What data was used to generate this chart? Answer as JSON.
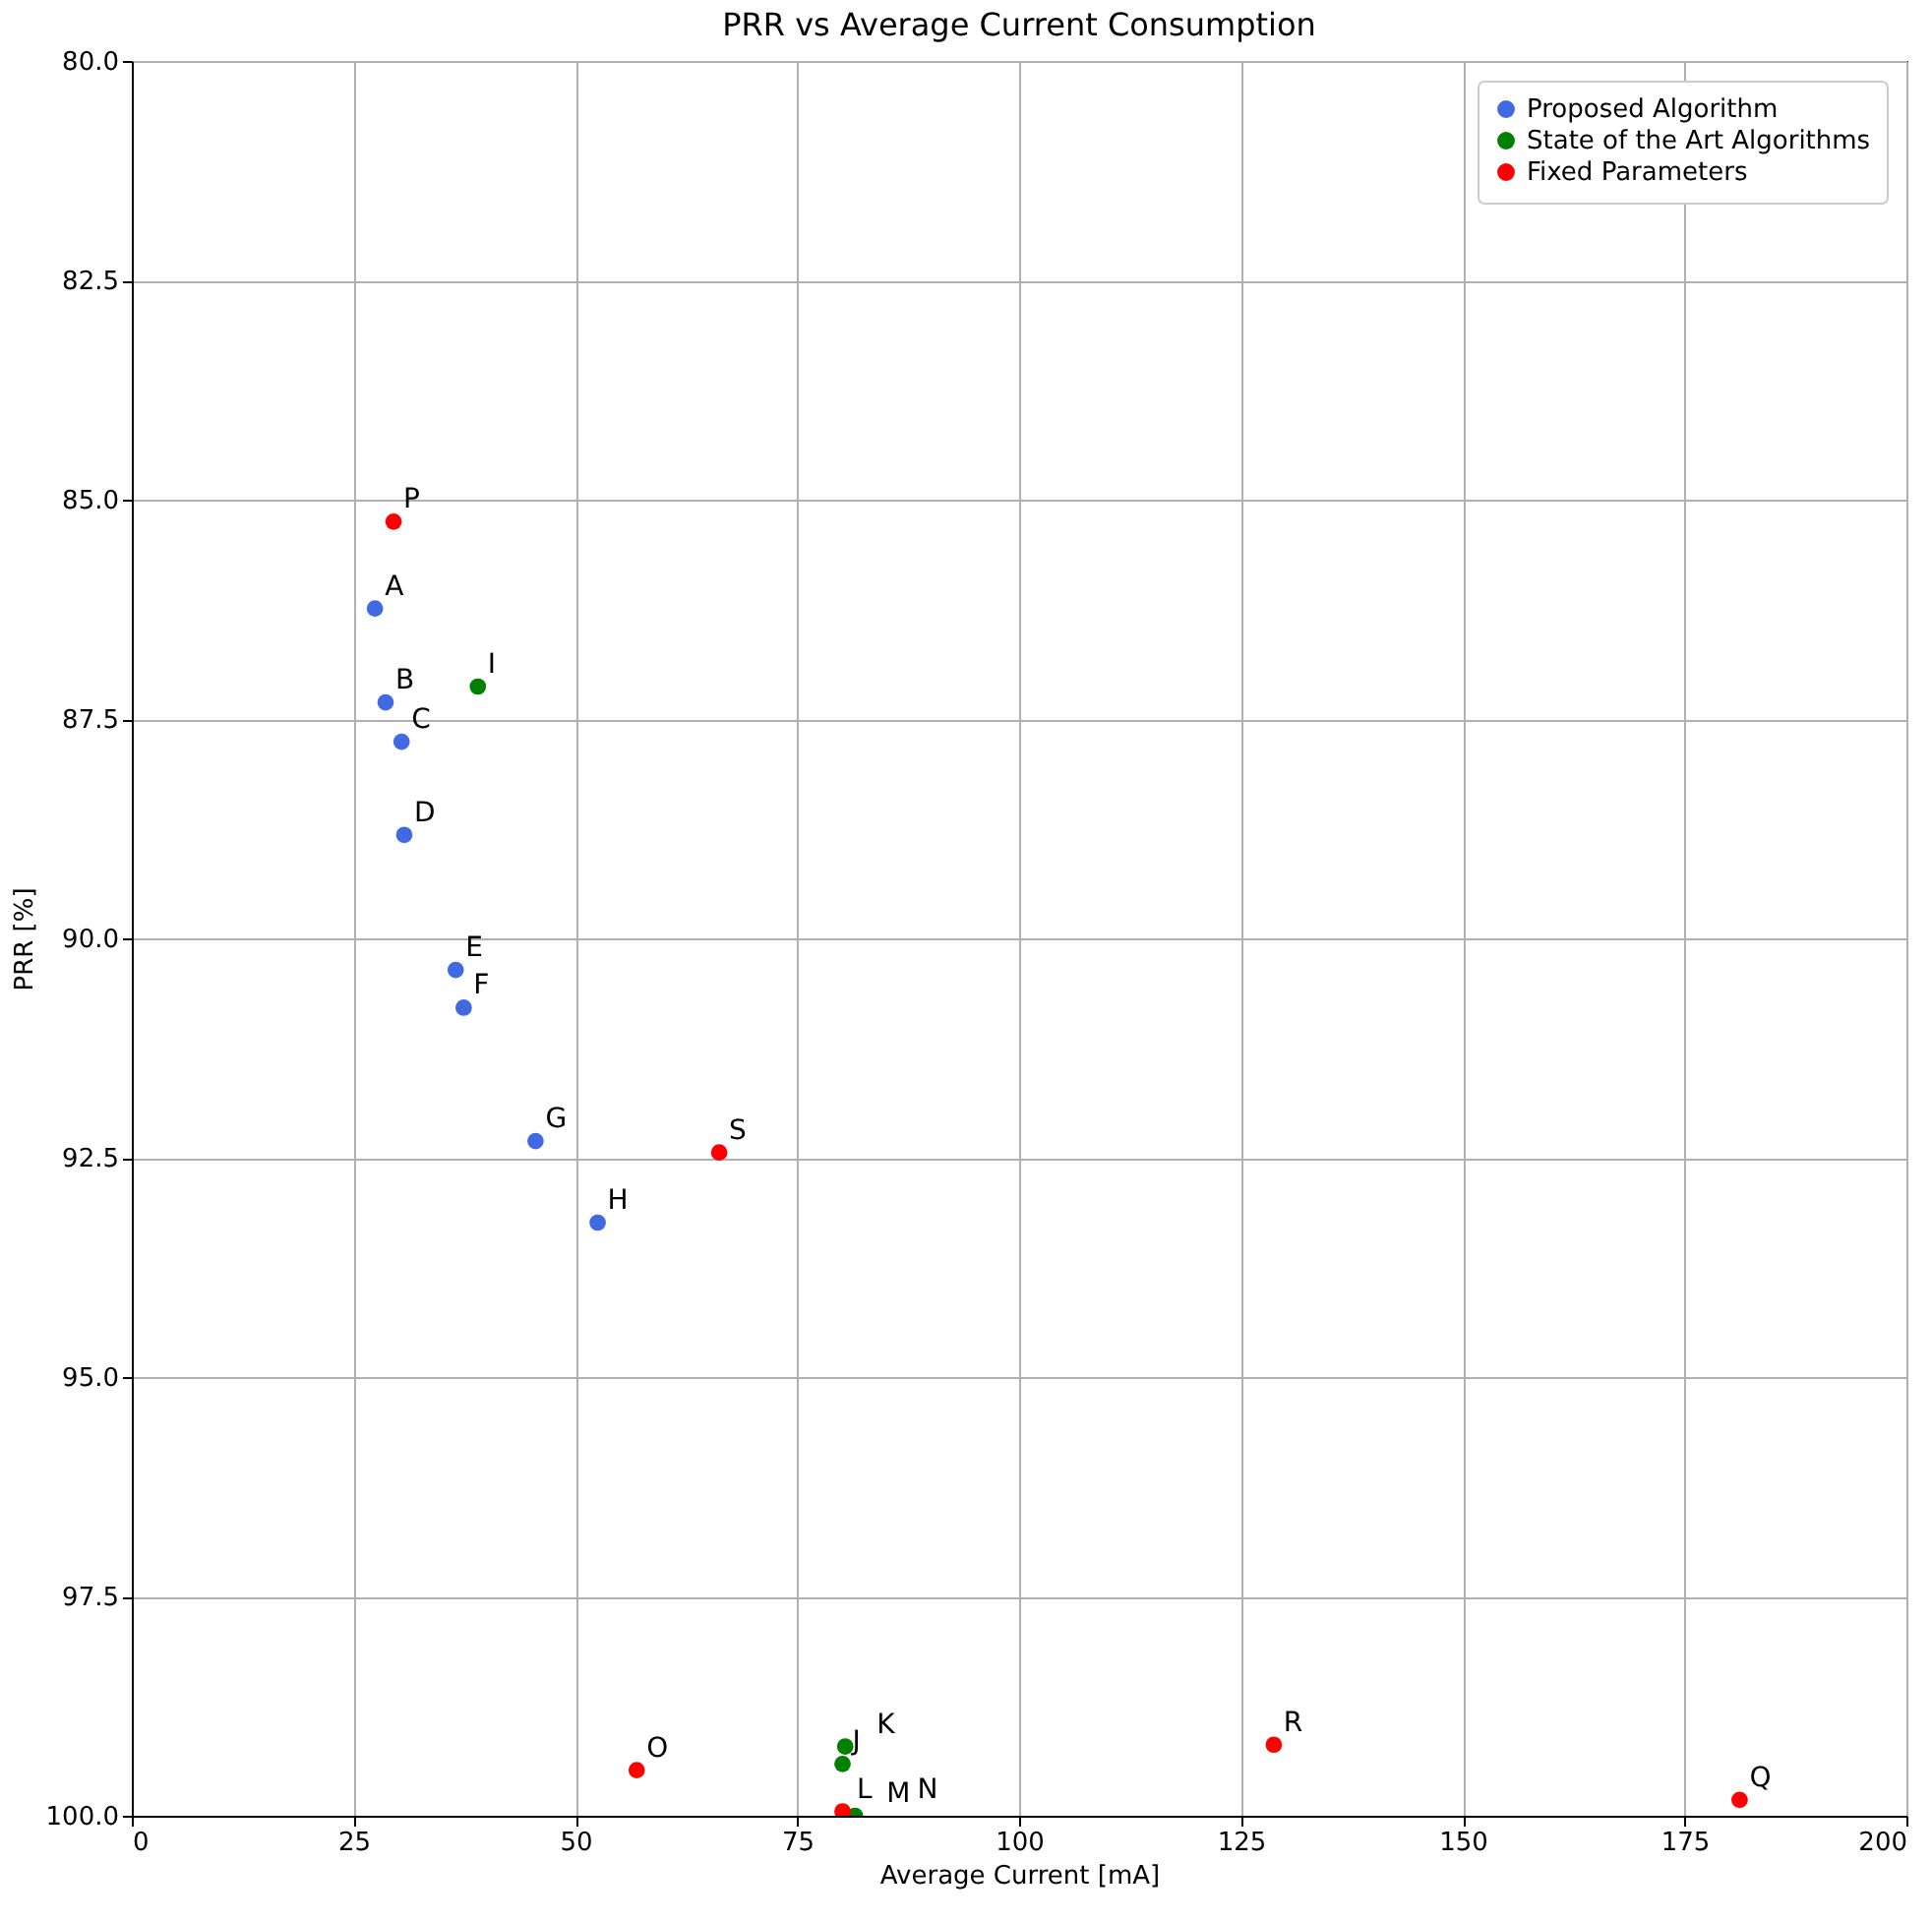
{
  "chart_data": {
    "type": "scatter",
    "title": "PRR vs Average Current Consumption",
    "xlabel": "Average Current [mA]",
    "ylabel": "PRR [%]",
    "series": [
      {
        "name": "Proposed Algorithm",
        "color": "#4169e1",
        "x": [
          27.4,
          28.6,
          30.4,
          30.7,
          36.5,
          37.4,
          45.5,
          52.5
        ],
        "values": [
          86.24,
          87.31,
          87.76,
          88.82,
          90.36,
          90.79,
          92.31,
          93.24
        ]
      },
      {
        "name": "State of the Art Algorithms",
        "color": "#008000",
        "x": [
          39.0,
          80.1,
          80.4,
          80.6,
          81.5
        ],
        "values": [
          87.13,
          99.41,
          99.21,
          null,
          100.0
        ]
      },
      {
        "name": "Fixed Parameters",
        "color": "#ff0000",
        "x": [
          80.1,
          56.9,
          29.5,
          181.2,
          128.7,
          66.2
        ],
        "values": [
          99.95,
          99.48,
          85.25,
          99.82,
          99.19,
          92.44
        ]
      }
    ],
    "annotations": [
      {
        "text": "A",
        "x": 27.4,
        "y": 86.24
      },
      {
        "text": "B",
        "x": 28.6,
        "y": 87.31
      },
      {
        "text": "C",
        "x": 30.4,
        "y": 87.76
      },
      {
        "text": "D",
        "x": 30.7,
        "y": 88.82
      },
      {
        "text": "E",
        "x": 36.5,
        "y": 90.36
      },
      {
        "text": "F",
        "x": 37.4,
        "y": 90.79
      },
      {
        "text": "G",
        "x": 45.5,
        "y": 92.31
      },
      {
        "text": "H",
        "x": 52.5,
        "y": 93.24
      },
      {
        "text": "I",
        "x": 39.0,
        "y": 87.13
      },
      {
        "text": "J",
        "x": 80.1,
        "y": 99.41
      },
      {
        "text": "K",
        "x": 80.4,
        "y": 99.21
      },
      {
        "text": "L",
        "x": 80.6,
        "y": 99.95
      },
      {
        "text": "M",
        "x": 81.5,
        "y": 100.0
      },
      {
        "text": "N",
        "x": 80.1,
        "y": 99.95
      },
      {
        "text": "O",
        "x": 56.9,
        "y": 99.48
      },
      {
        "text": "P",
        "x": 29.5,
        "y": 85.25
      },
      {
        "text": "Q",
        "x": 181.2,
        "y": 99.82
      },
      {
        "text": "R",
        "x": 128.7,
        "y": 99.19
      },
      {
        "text": "S",
        "x": 66.2,
        "y": 92.44
      }
    ],
    "xlim": [
      0,
      200
    ],
    "xticks": [
      0,
      25,
      50,
      75,
      100,
      125,
      150,
      175,
      200
    ],
    "ylim": [
      100,
      80
    ],
    "yticks": [
      {
        "value": 80,
        "label": "80.0"
      },
      {
        "value": 82.5,
        "label": "82.5"
      },
      {
        "value": 85,
        "label": "85.0"
      },
      {
        "value": 87.5,
        "label": "87.5"
      },
      {
        "value": 90,
        "label": "90.0"
      },
      {
        "value": 92.5,
        "label": "92.5"
      },
      {
        "value": 95,
        "label": "95.0"
      },
      {
        "value": 97.5,
        "label": "97.5"
      },
      {
        "value": 100,
        "label": "100.0"
      }
    ],
    "grid": true,
    "legend": "top right",
    "marker": "circle"
  }
}
